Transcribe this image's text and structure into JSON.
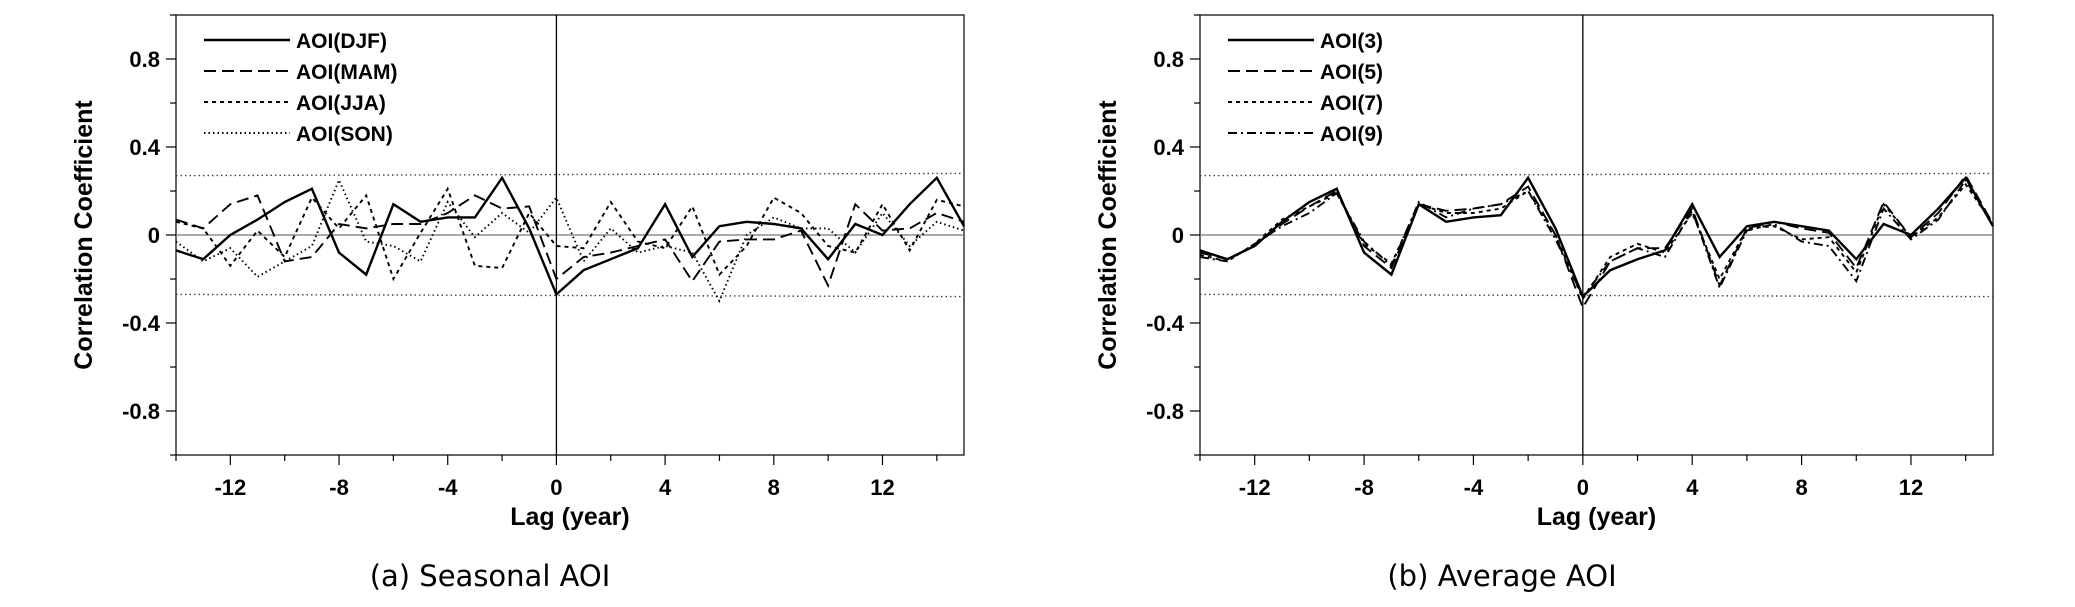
{
  "chart_data": [
    {
      "type": "line",
      "caption": "(a) Seasonal AOI",
      "xlabel": "Lag (year)",
      "ylabel": "Correlation Coefficient",
      "xlim": [
        -14,
        15
      ],
      "ylim": [
        -1.0,
        1.0
      ],
      "xticks": [
        -12,
        -8,
        -4,
        0,
        4,
        8,
        12
      ],
      "xtick_labels": [
        "-12",
        "-8",
        "-4",
        "0",
        "4",
        "8",
        "12"
      ],
      "yticks": [
        0.8,
        0.4,
        0,
        -0.4,
        -0.8
      ],
      "ytick_labels": [
        "0.8",
        "0.4",
        "0",
        "-0.4",
        "-0.8"
      ],
      "legend_position": "top-left",
      "x": [
        -14,
        -13,
        -12,
        -11,
        -10,
        -9,
        -8,
        -7,
        -6,
        -5,
        -4,
        -3,
        -2,
        -1,
        0,
        1,
        2,
        3,
        4,
        5,
        6,
        7,
        8,
        9,
        10,
        11,
        12,
        13,
        14,
        15
      ],
      "series": [
        {
          "name": "AOI(DJF)",
          "style": "solid",
          "values": [
            -0.07,
            -0.11,
            0.0,
            0.07,
            0.15,
            0.21,
            -0.08,
            -0.18,
            0.14,
            0.06,
            0.08,
            0.08,
            0.26,
            0.03,
            -0.27,
            -0.16,
            -0.11,
            -0.06,
            0.14,
            -0.1,
            0.04,
            0.06,
            0.05,
            0.03,
            -0.11,
            0.05,
            0.0,
            0.14,
            0.26,
            0.04
          ]
        },
        {
          "name": "AOI(MAM)",
          "style": "dashed",
          "values": [
            0.07,
            0.03,
            0.14,
            0.18,
            -0.12,
            -0.1,
            0.05,
            0.03,
            0.05,
            0.05,
            0.1,
            0.18,
            0.12,
            0.13,
            -0.2,
            -0.1,
            -0.08,
            -0.05,
            -0.02,
            -0.21,
            -0.03,
            -0.02,
            -0.02,
            0.02,
            -0.23,
            0.14,
            0.02,
            0.03,
            0.1,
            0.06
          ]
        },
        {
          "name": "AOI(JJA)",
          "style": "dotted",
          "values": [
            0.06,
            0.03,
            -0.14,
            0.02,
            -0.1,
            0.17,
            0.03,
            0.18,
            -0.2,
            0.01,
            0.21,
            -0.14,
            -0.15,
            0.1,
            -0.05,
            -0.06,
            0.15,
            -0.03,
            -0.06,
            0.13,
            -0.18,
            -0.05,
            0.17,
            0.1,
            -0.05,
            -0.08,
            0.14,
            -0.07,
            0.16,
            0.13
          ]
        },
        {
          "name": "AOI(SON)",
          "style": "fine-dotted",
          "values": [
            -0.03,
            -0.12,
            -0.06,
            -0.19,
            -0.12,
            -0.05,
            0.25,
            -0.03,
            -0.05,
            -0.12,
            0.15,
            -0.01,
            0.1,
            0.01,
            0.17,
            -0.12,
            0.03,
            -0.08,
            -0.05,
            -0.08,
            -0.3,
            0.0,
            0.08,
            0.03,
            0.03,
            -0.08,
            0.1,
            -0.05,
            0.06,
            0.02
          ]
        }
      ],
      "reference_lines": [
        {
          "y_start": 0.27,
          "y_end": 0.28,
          "style": "fine-dotted"
        },
        {
          "y_start": -0.27,
          "y_end": -0.28,
          "style": "fine-dotted"
        }
      ],
      "zero_lines": {
        "horizontal": 0,
        "vertical": 0
      }
    },
    {
      "type": "line",
      "caption": "(b) Average AOI",
      "xlabel": "Lag (year)",
      "ylabel": "Correlation Coefficient",
      "xlim": [
        -14,
        15
      ],
      "ylim": [
        -1.0,
        1.0
      ],
      "xticks": [
        -12,
        -8,
        -4,
        0,
        4,
        8,
        12
      ],
      "xtick_labels": [
        "-12",
        "-8",
        "-4",
        "0",
        "4",
        "8",
        "12"
      ],
      "yticks": [
        0.8,
        0.4,
        0,
        -0.4,
        -0.8
      ],
      "ytick_labels": [
        "0.8",
        "0.4",
        "0",
        "-0.4",
        "-0.8"
      ],
      "legend_position": "top-left",
      "x": [
        -14,
        -13,
        -12,
        -11,
        -10,
        -9,
        -8,
        -7,
        -6,
        -5,
        -4,
        -3,
        -2,
        -1,
        0,
        1,
        2,
        3,
        4,
        5,
        6,
        7,
        8,
        9,
        10,
        11,
        12,
        13,
        14,
        15
      ],
      "series": [
        {
          "name": "AOI(3)",
          "style": "solid",
          "values": [
            -0.07,
            -0.11,
            -0.05,
            0.06,
            0.15,
            0.21,
            -0.08,
            -0.18,
            0.14,
            0.06,
            0.08,
            0.09,
            0.26,
            0.03,
            -0.28,
            -0.16,
            -0.11,
            -0.07,
            0.14,
            -0.1,
            0.04,
            0.06,
            0.04,
            0.02,
            -0.11,
            0.05,
            0.0,
            0.12,
            0.26,
            0.04
          ]
        },
        {
          "name": "AOI(5)",
          "style": "dashed",
          "values": [
            -0.08,
            -0.11,
            -0.05,
            0.05,
            0.13,
            0.2,
            -0.05,
            -0.15,
            0.14,
            0.11,
            0.12,
            0.14,
            0.22,
            0.0,
            -0.33,
            -0.12,
            -0.06,
            -0.06,
            0.12,
            -0.23,
            0.03,
            0.06,
            0.03,
            0.01,
            -0.15,
            0.15,
            -0.01,
            0.1,
            0.27,
            0.05
          ]
        },
        {
          "name": "AOI(7)",
          "style": "dotted",
          "values": [
            -0.09,
            -0.12,
            -0.04,
            0.07,
            0.13,
            0.19,
            -0.04,
            -0.13,
            0.14,
            0.1,
            0.1,
            0.12,
            0.2,
            0.0,
            -0.29,
            -0.1,
            -0.04,
            -0.08,
            0.1,
            -0.2,
            0.03,
            0.04,
            -0.02,
            -0.01,
            -0.17,
            0.14,
            -0.01,
            0.08,
            0.23,
            0.05
          ]
        },
        {
          "name": "AOI(9)",
          "style": "dash-dot",
          "values": [
            -0.1,
            -0.12,
            -0.04,
            0.04,
            0.1,
            0.19,
            -0.03,
            -0.14,
            0.15,
            0.08,
            0.12,
            0.14,
            0.2,
            -0.02,
            -0.28,
            -0.12,
            -0.06,
            -0.1,
            0.11,
            -0.24,
            0.02,
            0.05,
            -0.03,
            -0.05,
            -0.21,
            0.12,
            -0.02,
            0.07,
            0.25,
            0.04
          ]
        }
      ],
      "reference_lines": [
        {
          "y_start": 0.27,
          "y_end": 0.28,
          "style": "fine-dotted"
        },
        {
          "y_start": -0.27,
          "y_end": -0.28,
          "style": "fine-dotted"
        }
      ],
      "zero_lines": {
        "horizontal": 0,
        "vertical": 0
      }
    }
  ]
}
